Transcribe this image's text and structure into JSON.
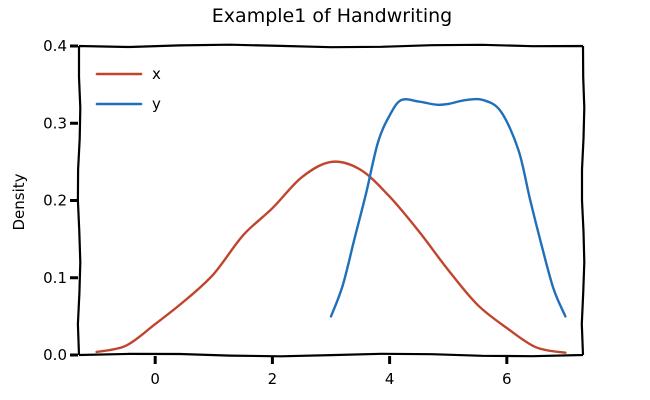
{
  "chart_data": {
    "type": "line",
    "title": "Example1 of Handwriting",
    "xlabel": "",
    "ylabel": "Density",
    "xlim": [
      -1.3,
      7.3
    ],
    "ylim": [
      0.0,
      0.4
    ],
    "xticks": [
      0,
      2,
      4,
      6
    ],
    "yticks": [
      0.0,
      0.1,
      0.2,
      0.3,
      0.4
    ],
    "xtick_labels": [
      "0",
      "2",
      "4",
      "6"
    ],
    "ytick_labels": [
      "0.0",
      "0.1",
      "0.2",
      "0.3",
      "0.4"
    ],
    "grid": false,
    "legend_position": "top-left",
    "series": [
      {
        "name": "x",
        "color": "#c0452f",
        "points": [
          [
            -1.0,
            0.004
          ],
          [
            -0.5,
            0.012
          ],
          [
            0.0,
            0.04
          ],
          [
            0.5,
            0.07
          ],
          [
            1.0,
            0.105
          ],
          [
            1.5,
            0.155
          ],
          [
            2.0,
            0.19
          ],
          [
            2.5,
            0.23
          ],
          [
            3.0,
            0.25
          ],
          [
            3.5,
            0.24
          ],
          [
            4.0,
            0.205
          ],
          [
            4.5,
            0.16
          ],
          [
            5.0,
            0.11
          ],
          [
            5.5,
            0.065
          ],
          [
            6.0,
            0.035
          ],
          [
            6.5,
            0.01
          ],
          [
            7.0,
            0.003
          ]
        ]
      },
      {
        "name": "y",
        "color": "#1f70b8",
        "points": [
          [
            3.0,
            0.05
          ],
          [
            3.2,
            0.09
          ],
          [
            3.4,
            0.15
          ],
          [
            3.6,
            0.21
          ],
          [
            3.8,
            0.275
          ],
          [
            4.0,
            0.31
          ],
          [
            4.2,
            0.33
          ],
          [
            4.5,
            0.328
          ],
          [
            4.8,
            0.324
          ],
          [
            5.0,
            0.325
          ],
          [
            5.3,
            0.33
          ],
          [
            5.6,
            0.33
          ],
          [
            5.9,
            0.315
          ],
          [
            6.2,
            0.265
          ],
          [
            6.4,
            0.2
          ],
          [
            6.6,
            0.14
          ],
          [
            6.8,
            0.085
          ],
          [
            7.0,
            0.05
          ]
        ]
      }
    ]
  }
}
